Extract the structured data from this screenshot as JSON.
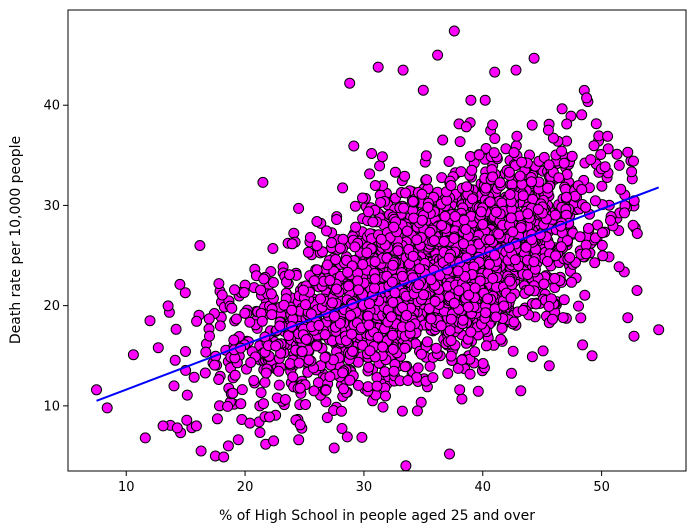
{
  "chart_data": {
    "type": "scatter",
    "xlabel": "% of High School in people aged 25 and over",
    "ylabel": "Death rate per 10,000 people",
    "xlim": [
      5.1,
      57.1
    ],
    "ylim": [
      3.5,
      49.5
    ],
    "xticks": [
      10,
      20,
      30,
      40,
      50
    ],
    "yticks": [
      10,
      20,
      30,
      40
    ],
    "grid": false,
    "marker_color": "#ff00ff",
    "marker_edge_color": "#000000",
    "line_color": "#0000ff",
    "fit_line": {
      "x": [
        7.5,
        54.8
      ],
      "y": [
        10.5,
        31.8
      ]
    },
    "scatter_cloud": {
      "approx_count": 3000,
      "x_center": 36,
      "x_spread": 7,
      "slope": 0.45,
      "intercept": 7.1,
      "y_noise": 4.5
    },
    "points": [
      [
        7.5,
        11.6
      ],
      [
        8.4,
        9.8
      ],
      [
        10.6,
        15.1
      ],
      [
        11.6,
        6.8
      ],
      [
        12.0,
        18.5
      ],
      [
        12.7,
        15.8
      ],
      [
        13.1,
        8.0
      ],
      [
        14.3,
        7.8
      ],
      [
        15.9,
        8.0
      ],
      [
        16.2,
        26.0
      ],
      [
        16.3,
        5.5
      ],
      [
        17.5,
        5.0
      ],
      [
        17.8,
        22.2
      ],
      [
        18.2,
        4.9
      ],
      [
        18.6,
        6.0
      ],
      [
        21.5,
        32.3
      ],
      [
        22.4,
        6.5
      ],
      [
        24.5,
        29.7
      ],
      [
        27.7,
        28.6
      ],
      [
        28.6,
        6.9
      ],
      [
        28.8,
        42.2
      ],
      [
        31.2,
        43.8
      ],
      [
        33.3,
        43.5
      ],
      [
        35.0,
        41.5
      ],
      [
        36.2,
        45.0
      ],
      [
        37.6,
        47.4
      ],
      [
        37.2,
        5.2
      ],
      [
        41.0,
        43.3
      ],
      [
        42.8,
        43.5
      ],
      [
        43.2,
        11.5
      ],
      [
        45.6,
        14.0
      ],
      [
        49.2,
        15.0
      ],
      [
        50.5,
        36.9
      ],
      [
        52.2,
        18.8
      ],
      [
        53.0,
        27.2
      ],
      [
        54.8,
        17.6
      ],
      [
        39.0,
        40.5
      ],
      [
        40.2,
        40.5
      ],
      [
        30.5,
        15.5
      ],
      [
        34.5,
        9.5
      ]
    ]
  }
}
